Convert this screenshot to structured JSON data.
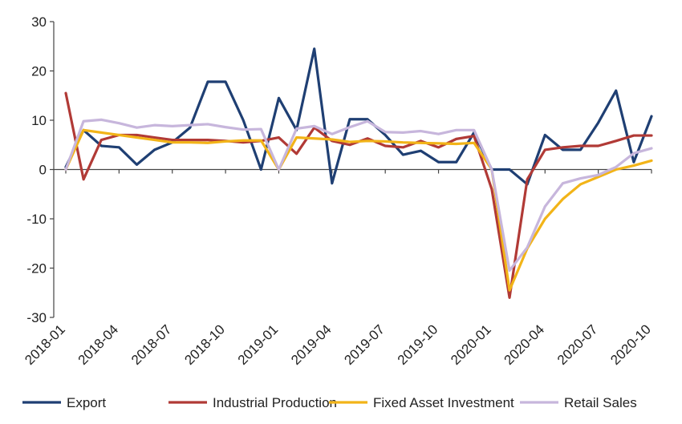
{
  "chart_data": {
    "type": "line",
    "xlabel": "",
    "ylabel": "",
    "ylim": [
      -30,
      30
    ],
    "yticks": [
      30,
      20,
      10,
      0,
      -10,
      -20,
      -30
    ],
    "grid": false,
    "legend_position": "bottom",
    "x": [
      "2018-01",
      "2018-02",
      "2018-03",
      "2018-04",
      "2018-05",
      "2018-06",
      "2018-07",
      "2018-08",
      "2018-09",
      "2018-10",
      "2018-11",
      "2018-12",
      "2019-01",
      "2019-02",
      "2019-03",
      "2019-04",
      "2019-05",
      "2019-06",
      "2019-07",
      "2019-08",
      "2019-09",
      "2019-10",
      "2019-11",
      "2019-12",
      "2020-01",
      "2020-02",
      "2020-03",
      "2020-04",
      "2020-05",
      "2020-06",
      "2020-07",
      "2020-08",
      "2020-09",
      "2020-10"
    ],
    "xtick_labels": [
      "2018-01",
      "2018-04",
      "2018-07",
      "2018-10",
      "2019-01",
      "2019-04",
      "2019-07",
      "2019-10",
      "2020-01",
      "2020-04",
      "2020-07",
      "2020-10"
    ],
    "series": [
      {
        "name": "Export",
        "color": "#1f3f73",
        "values": [
          0.5,
          8,
          4.8,
          4.5,
          1,
          4,
          5.5,
          8.5,
          17.8,
          17.8,
          10,
          0,
          14.5,
          8,
          24.5,
          -2.8,
          10.2,
          10.2,
          7,
          3,
          3.8,
          1.5,
          1.5,
          7.5,
          0,
          0,
          -3,
          7,
          4,
          4,
          9.5,
          16,
          1.5,
          10.8
        ]
      },
      {
        "name": "Industrial Production",
        "color": "#b13a36",
        "values": [
          15.5,
          -2,
          6,
          7,
          7,
          6.5,
          6,
          6,
          6,
          5.8,
          5.5,
          5.8,
          6.5,
          3.2,
          8.5,
          5.8,
          5,
          6.3,
          4.8,
          4.5,
          5.8,
          4.5,
          6.2,
          6.8,
          -4,
          -26,
          -2,
          4,
          4.5,
          4.8,
          4.8,
          5.8,
          6.9,
          6.9
        ]
      },
      {
        "name": "Fixed Asset Investment",
        "color": "#f2b418",
        "values": [
          0,
          8,
          7.5,
          7,
          6.5,
          6,
          5.5,
          5.5,
          5.4,
          5.7,
          5.9,
          5.9,
          0,
          6.5,
          6.3,
          6.1,
          5.6,
          5.8,
          5.7,
          5.5,
          5.4,
          5.3,
          5.2,
          5.4,
          0,
          -24.5,
          -16,
          -10,
          -6,
          -3,
          -1.5,
          0,
          0.8,
          1.8
        ]
      },
      {
        "name": "Retail Sales",
        "color": "#c7b6dc",
        "values": [
          0,
          9.8,
          10.1,
          9.4,
          8.5,
          9,
          8.8,
          9,
          9.2,
          8.6,
          8.1,
          8.2,
          0,
          8.3,
          8.8,
          7.2,
          8.6,
          9.8,
          7.6,
          7.5,
          7.8,
          7.2,
          8,
          8,
          0,
          -20.5,
          -15.8,
          -7.5,
          -2.8,
          -1.8,
          -1.1,
          0.5,
          3.3,
          4.3
        ]
      }
    ]
  }
}
